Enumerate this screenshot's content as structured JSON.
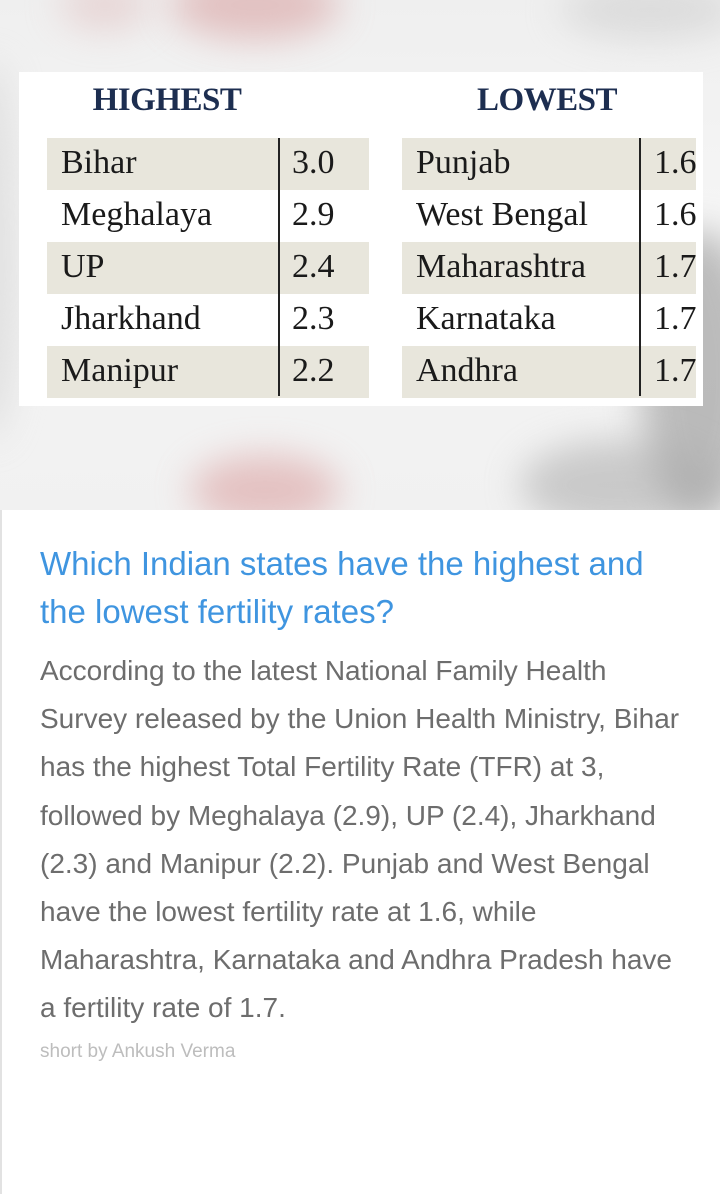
{
  "tables": {
    "highest": {
      "title": "HIGHEST",
      "rows": [
        {
          "state": "Bihar",
          "value": "3.0"
        },
        {
          "state": "Meghalaya",
          "value": "2.9"
        },
        {
          "state": "UP",
          "value": "2.4"
        },
        {
          "state": "Jharkhand",
          "value": "2.3"
        },
        {
          "state": "Manipur",
          "value": "2.2"
        }
      ]
    },
    "lowest": {
      "title": "LOWEST",
      "rows": [
        {
          "state": "Punjab",
          "value": "1.6"
        },
        {
          "state": "West Bengal",
          "value": "1.6"
        },
        {
          "state": "Maharashtra",
          "value": "1.7"
        },
        {
          "state": "Karnataka",
          "value": "1.7"
        },
        {
          "state": "Andhra",
          "value": "1.7"
        }
      ]
    }
  },
  "article": {
    "headline": "Which Indian states have the highest and the lowest fertility rates?",
    "body": "According to the latest National Family Health Survey released by the Union Health Ministry, Bihar has the highest Total Fertility Rate (TFR) at 3, followed by Meghalaya (2.9), UP (2.4), Jharkhand (2.3) and Manipur (2.2). Punjab and West Bengal have the lowest fertility rate at 1.6, while Maharashtra, Karnataka and Andhra Pradesh have a fertility rate of 1.7.",
    "byline": "short by Ankush Verma"
  },
  "colors": {
    "headline": "#3f95e0",
    "body": "#6d6d6d",
    "byline": "#bdbdbd",
    "table_heading": "#1d2e50",
    "row_shade": "#e8e6dc"
  }
}
